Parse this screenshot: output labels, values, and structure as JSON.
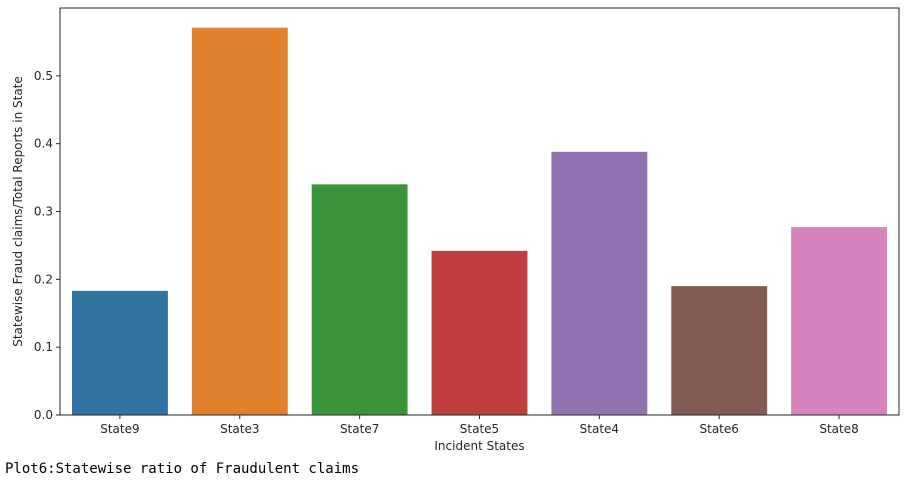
{
  "chart_data": {
    "type": "bar",
    "categories": [
      "State9",
      "State3",
      "State7",
      "State5",
      "State4",
      "State6",
      "State8"
    ],
    "values": [
      0.183,
      0.571,
      0.34,
      0.242,
      0.388,
      0.19,
      0.277
    ],
    "colors": [
      "#3274a1",
      "#e1812c",
      "#3a923a",
      "#c03d3e",
      "#9372b2",
      "#845b53",
      "#d684bd"
    ],
    "xlabel": "Incident States",
    "ylabel": "Statewise Fraud claims/Total Reports in State",
    "ylim": [
      0,
      0.6
    ],
    "yticks": [
      0.0,
      0.1,
      0.2,
      0.3,
      0.4,
      0.5
    ],
    "ytick_labels": [
      "0.0",
      "0.1",
      "0.2",
      "0.3",
      "0.4",
      "0.5"
    ],
    "grid": false,
    "legend": "none"
  },
  "caption": "Plot6:Statewise ratio of Fraudulent claims"
}
